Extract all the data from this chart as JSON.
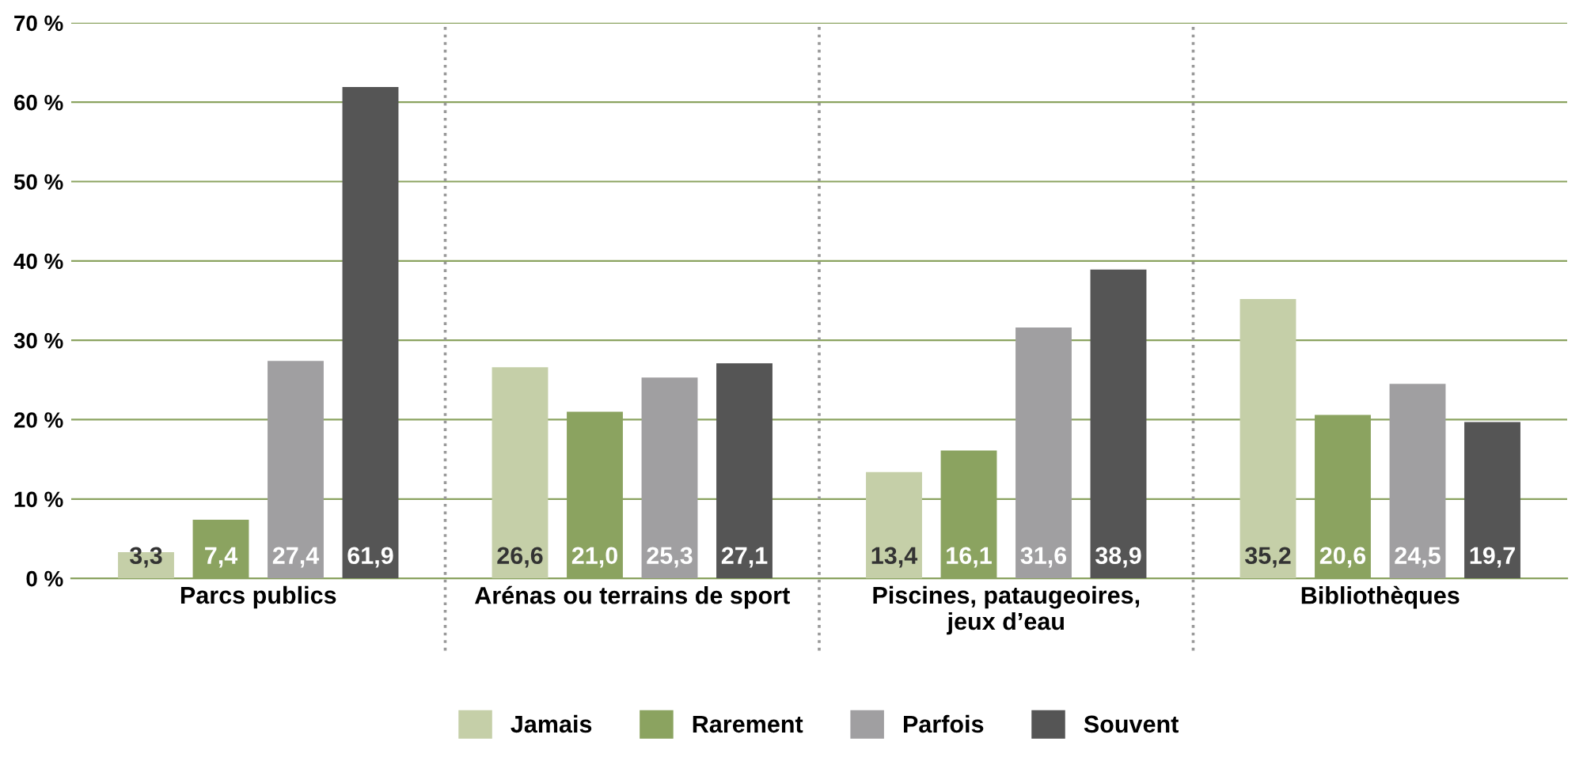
{
  "chart_data": {
    "type": "bar",
    "categories": [
      "Parcs publics",
      "Arénas ou terrains de sport",
      "Piscines, pataugeoires,\njeux d’eau",
      "Bibliothèques"
    ],
    "series": [
      {
        "name": "Jamais",
        "color": "#c5cfa8",
        "values": [
          3.3,
          26.6,
          13.4,
          35.2
        ],
        "value_labels": [
          "3,3",
          "26,6",
          "13,4",
          "35,2"
        ]
      },
      {
        "name": "Rarement",
        "color": "#8ba360",
        "values": [
          7.4,
          21.0,
          16.1,
          20.6
        ],
        "value_labels": [
          "7,4",
          "21,0",
          "16,1",
          "20,6"
        ]
      },
      {
        "name": "Parfois",
        "color": "#a09fa1",
        "values": [
          27.4,
          25.3,
          31.6,
          24.5
        ],
        "value_labels": [
          "27,4",
          "25,3",
          "31,6",
          "24,5"
        ]
      },
      {
        "name": "Souvent",
        "color": "#555555",
        "values": [
          61.9,
          27.1,
          38.9,
          19.7
        ],
        "value_labels": [
          "61,9",
          "27,1",
          "38,9",
          "19,7"
        ]
      }
    ],
    "ylim": [
      0,
      70
    ],
    "yticks": [
      {
        "value": 0,
        "label": "0 %"
      },
      {
        "value": 10,
        "label": "10 %"
      },
      {
        "value": 20,
        "label": "20 %"
      },
      {
        "value": 30,
        "label": "30 %"
      },
      {
        "value": 40,
        "label": "40 %"
      },
      {
        "value": 50,
        "label": "50 %"
      },
      {
        "value": 60,
        "label": "60 %"
      },
      {
        "value": 70,
        "label": "70 %"
      }
    ],
    "grid": "y",
    "legend": "bottom"
  }
}
